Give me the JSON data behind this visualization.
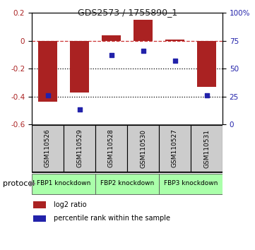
{
  "title": "GDS2573 / 1755890_1",
  "samples": [
    "GSM110526",
    "GSM110529",
    "GSM110528",
    "GSM110530",
    "GSM110527",
    "GSM110531"
  ],
  "log2_ratio": [
    -0.44,
    -0.37,
    0.04,
    0.15,
    0.01,
    -0.33
  ],
  "percentile_rank": [
    26,
    13,
    62,
    66,
    57,
    26
  ],
  "bar_color": "#aa2222",
  "dot_color": "#2222aa",
  "ylim_left": [
    -0.6,
    0.2
  ],
  "ylim_right": [
    0,
    100
  ],
  "yticks_left": [
    -0.6,
    -0.4,
    -0.2,
    0.0,
    0.2
  ],
  "yticks_right": [
    0,
    25,
    50,
    75,
    100
  ],
  "hlines": [
    0.0,
    -0.2,
    -0.4
  ],
  "hline_styles": [
    "dashed",
    "dotted",
    "dotted"
  ],
  "hline_colors": [
    "#cc3333",
    "#000000",
    "#000000"
  ],
  "protocol_groups": [
    {
      "label": "FBP1 knockdown",
      "samples": [
        0,
        1
      ],
      "color": "#aaffaa"
    },
    {
      "label": "FBP2 knockdown",
      "samples": [
        2,
        3
      ],
      "color": "#aaffaa"
    },
    {
      "label": "FBP3 knockdown",
      "samples": [
        4,
        5
      ],
      "color": "#aaffaa"
    }
  ],
  "legend_items": [
    {
      "color": "#aa2222",
      "label": "log2 ratio"
    },
    {
      "color": "#2222aa",
      "label": "percentile rank within the sample"
    }
  ],
  "protocol_label": "protocol",
  "bg_color": "#ffffff",
  "sample_box_color": "#cccccc",
  "bar_width": 0.6
}
